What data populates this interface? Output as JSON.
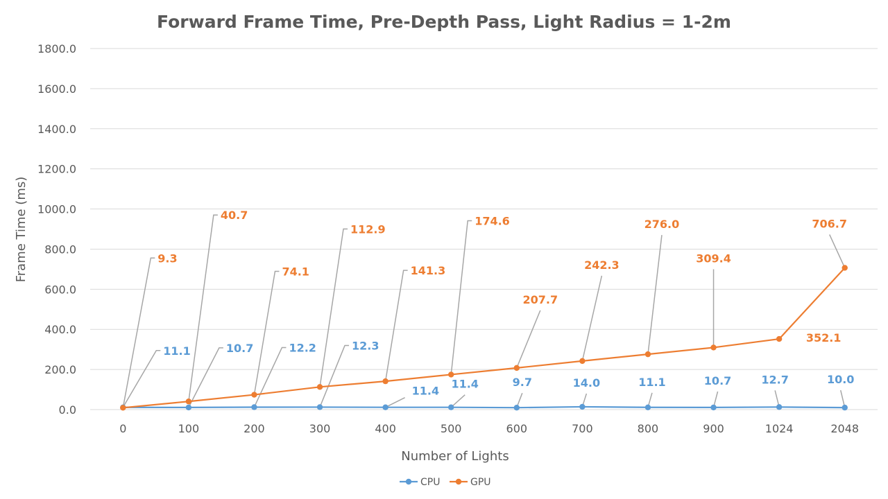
{
  "chart_data": {
    "type": "line",
    "title": "Forward Frame Time, Pre-Depth Pass, Light Radius = 1-2m",
    "xlabel": "Number of Lights",
    "ylabel": "Frame Time (ms)",
    "categories": [
      "0",
      "100",
      "200",
      "300",
      "400",
      "500",
      "600",
      "700",
      "800",
      "900",
      "1024",
      "2048"
    ],
    "ylim": [
      0,
      1800
    ],
    "yticks": [
      "0.0",
      "200.0",
      "400.0",
      "600.0",
      "800.0",
      "1000.0",
      "1200.0",
      "1400.0",
      "1600.0",
      "1800.0"
    ],
    "grid": true,
    "legend_position": "bottom",
    "series": [
      {
        "name": "CPU",
        "color": "#5b9bd5",
        "values": [
          11.1,
          10.7,
          12.2,
          12.3,
          11.4,
          11.4,
          9.7,
          14.0,
          11.1,
          10.7,
          12.7,
          10.0
        ],
        "labels": [
          "11.1",
          "10.7",
          "12.2",
          "12.3",
          "11.4",
          "11.4",
          "9.7",
          "14.0",
          "11.1",
          "10.7",
          "12.7",
          "10.0"
        ]
      },
      {
        "name": "GPU",
        "color": "#ed7d31",
        "values": [
          9.3,
          40.7,
          74.1,
          112.9,
          141.3,
          174.6,
          207.7,
          242.3,
          276.0,
          309.4,
          352.1,
          706.7
        ],
        "labels": [
          "9.3",
          "40.7",
          "74.1",
          "112.9",
          "141.3",
          "174.6",
          "207.7",
          "242.3",
          "276.0",
          "309.4",
          "352.1",
          "706.7"
        ]
      }
    ]
  }
}
